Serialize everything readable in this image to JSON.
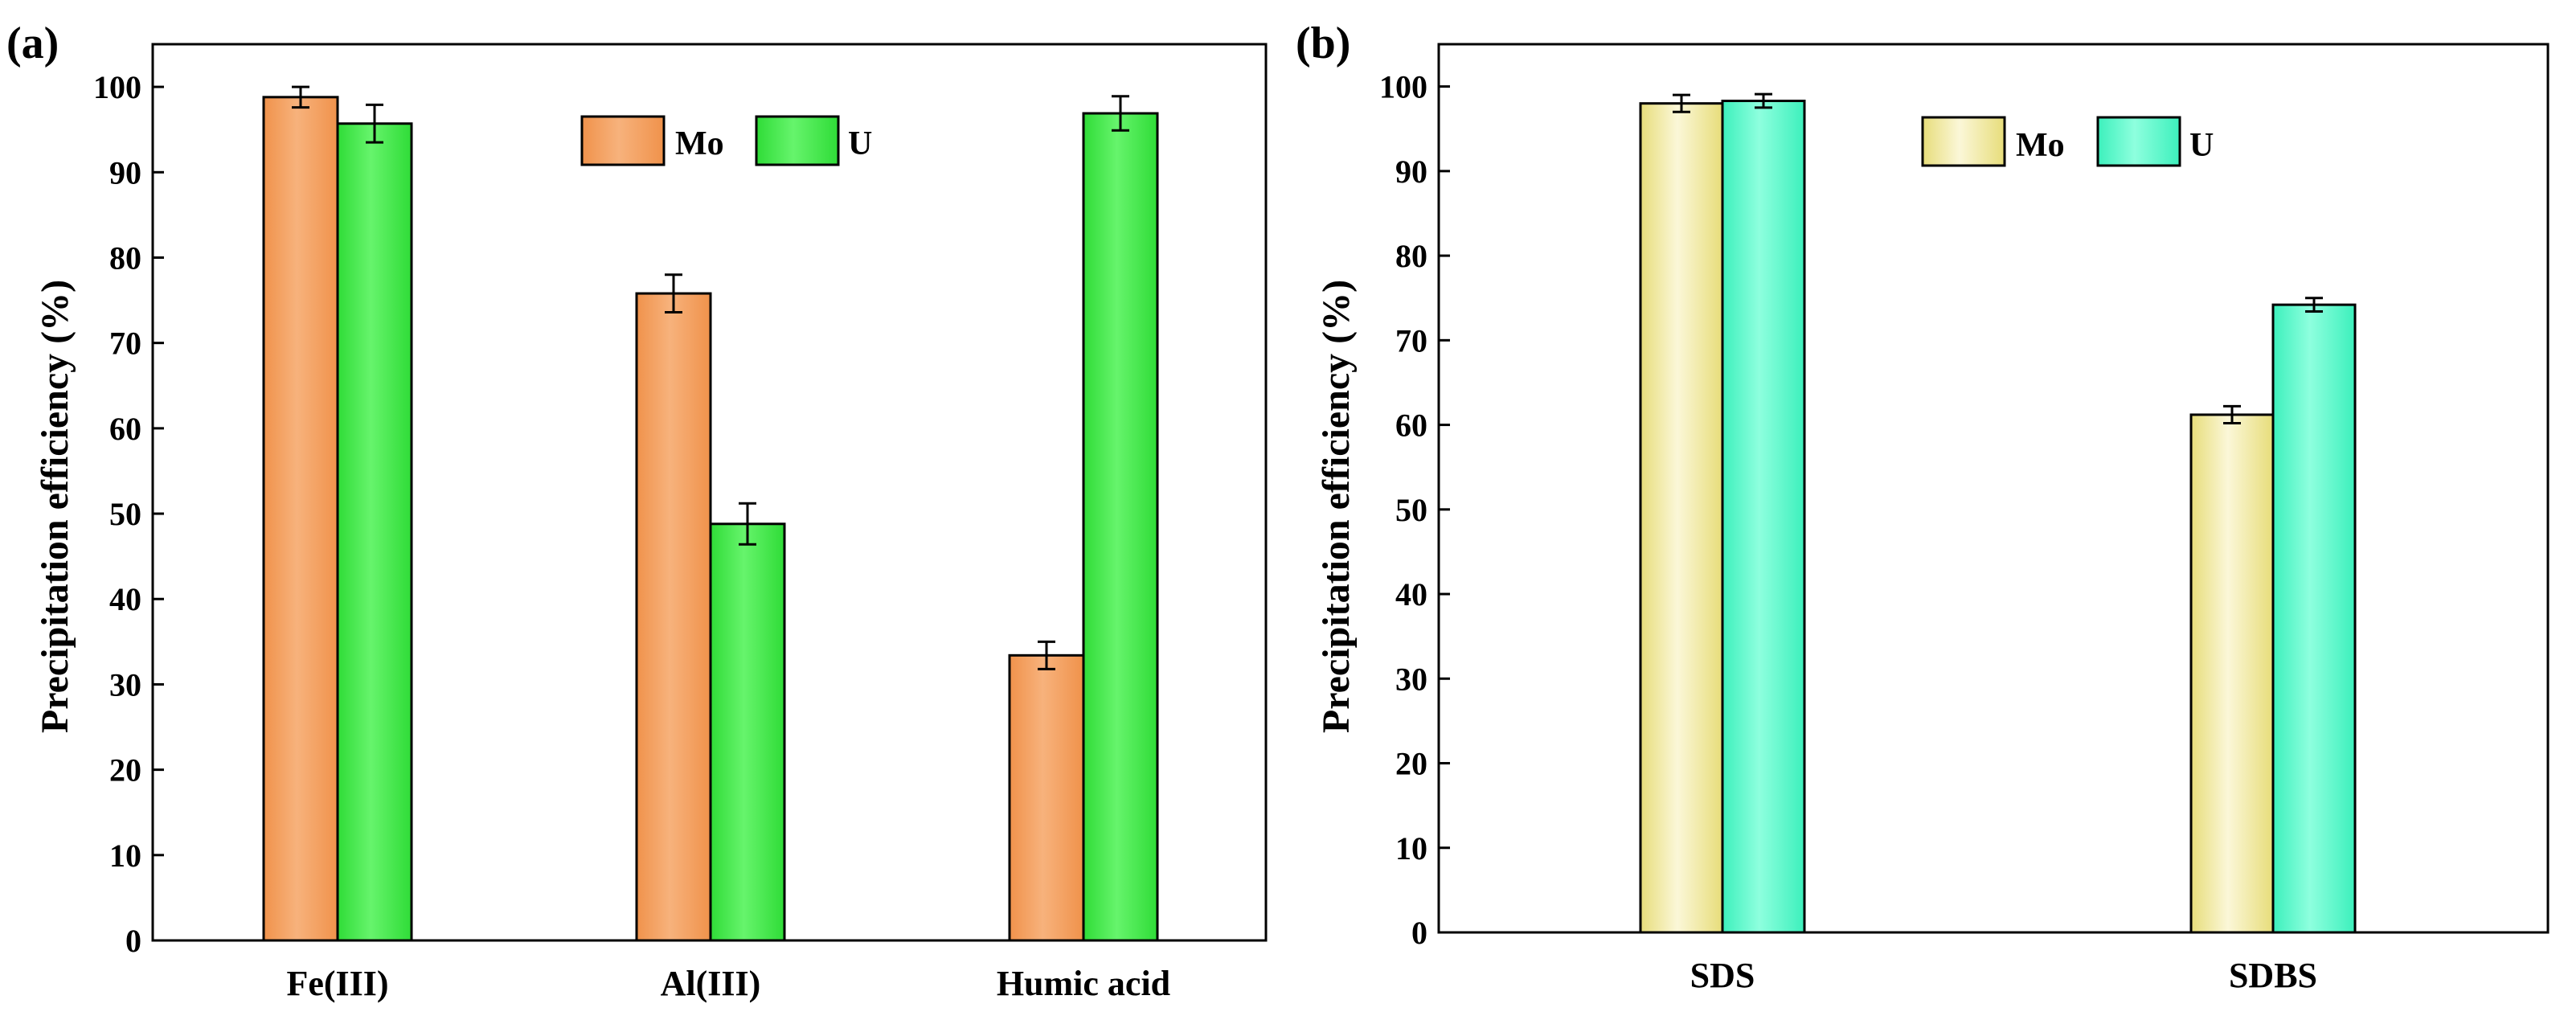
{
  "chart_data": [
    {
      "panel_label": "(a)",
      "type": "bar",
      "categories": [
        "Fe(III)",
        "Al(III)",
        "Humic acid"
      ],
      "series": [
        {
          "name": "Mo",
          "values": [
            98.8,
            75.8,
            33.4
          ],
          "errors": [
            1.2,
            2.2,
            1.6
          ],
          "color": "#f0924b",
          "highlight": "#f7b27c"
        },
        {
          "name": "U",
          "values": [
            95.7,
            48.8,
            96.9
          ],
          "errors": [
            2.2,
            2.4,
            2.0
          ],
          "color": "#2fdc37",
          "highlight": "#66f46c"
        }
      ],
      "xlabel": "",
      "ylabel": "Precipitation efficiency (%)",
      "ylim": [
        0,
        105
      ],
      "yticks": [
        0,
        10,
        20,
        30,
        40,
        50,
        60,
        70,
        80,
        90,
        100
      ],
      "legend_position": "top-center"
    },
    {
      "panel_label": "(b)",
      "type": "bar",
      "categories": [
        "SDS",
        "SDBS"
      ],
      "series": [
        {
          "name": "Mo",
          "values": [
            98.0,
            61.2
          ],
          "errors": [
            1.0,
            1.0
          ],
          "color": "#e7dd7a",
          "highlight": "#fbf7d8"
        },
        {
          "name": "U",
          "values": [
            98.3,
            74.2
          ],
          "errors": [
            0.8,
            0.8
          ],
          "color": "#3cf0bc",
          "highlight": "#8effde"
        }
      ],
      "xlabel": "",
      "ylabel": "Precipitation efficiency (%)",
      "ylim": [
        0,
        105
      ],
      "yticks": [
        0,
        10,
        20,
        30,
        40,
        50,
        60,
        70,
        80,
        90,
        100
      ],
      "legend_position": "top-center"
    }
  ]
}
